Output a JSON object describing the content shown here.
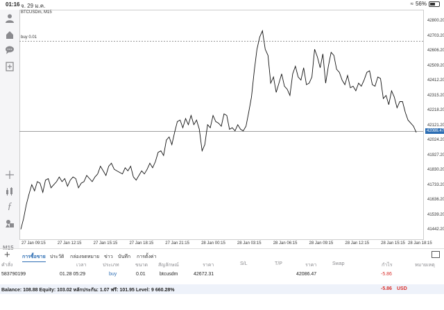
{
  "status": {
    "time": "01:16",
    "date": "จ. 29 ม.ค.",
    "battery": "56%",
    "battery_level": 0.56
  },
  "toolbar": {
    "timeframe": "M15"
  },
  "chart": {
    "symbol": "BTCUSDm, M15",
    "order_line_label": "buy 0.01",
    "current_price": "42086.47",
    "y_ticks": [
      "42800.20",
      "42703.20",
      "42606.20",
      "42509.20",
      "42412.20",
      "42315.20",
      "42218.20",
      "42121.20",
      "42024.20",
      "41927.20",
      "41830.20",
      "41733.20",
      "41636.20",
      "41539.20",
      "41442.20"
    ],
    "x_ticks": [
      "27 Jan 09:15",
      "27 Jan 12:15",
      "27 Jan 15:15",
      "27 Jan 18:15",
      "27 Jan 21:15",
      "28 Jan 00:15",
      "28 Jan 03:15",
      "28 Jan 06:15",
      "28 Jan 09:15",
      "28 Jan 12:15",
      "28 Jan 15:15",
      "28 Jan 18:15"
    ]
  },
  "chart_data": {
    "type": "line",
    "ylim": [
      41390,
      42850
    ],
    "order_price": 42672.31,
    "current_price": 42086.47,
    "values": [
      41450,
      41520,
      41610,
      41680,
      41740,
      41700,
      41760,
      41750,
      41690,
      41770,
      41780,
      41720,
      41740,
      41760,
      41790,
      41760,
      41780,
      41730,
      41770,
      41790,
      41780,
      41720,
      41750,
      41760,
      41800,
      41780,
      41760,
      41790,
      41810,
      41860,
      41830,
      41800,
      41860,
      41880,
      41840,
      41830,
      41820,
      41810,
      41850,
      41830,
      41860,
      41790,
      41770,
      41800,
      41830,
      41810,
      41840,
      41880,
      41850,
      41890,
      41950,
      41960,
      41930,
      42030,
      42050,
      42000,
      42080,
      42150,
      42160,
      42110,
      42170,
      42130,
      42190,
      42130,
      42160,
      42100,
      41960,
      42000,
      42130,
      42110,
      42190,
      42150,
      42140,
      42120,
      42200,
      42190,
      42100,
      42110,
      42090,
      42130,
      42100,
      42090,
      42120,
      42210,
      42310,
      42480,
      42620,
      42700,
      42740,
      42620,
      42580,
      42400,
      42440,
      42340,
      42400,
      42460,
      42380,
      42360,
      42320,
      42460,
      42510,
      42440,
      42420,
      42500,
      42390,
      42400,
      42440,
      42620,
      42570,
      42500,
      42590,
      42400,
      42510,
      42600,
      42580,
      42490,
      42470,
      42420,
      42390,
      42450,
      42370,
      42380,
      42350,
      42400,
      42380,
      42420,
      42470,
      42480,
      42390,
      42380,
      42440,
      42430,
      42300,
      42320,
      42260,
      42350,
      42310,
      42240,
      42280,
      42280,
      42210,
      42160,
      42140,
      42120,
      42080
    ]
  },
  "tabs": {
    "add_label": "+",
    "items": [
      "การซื้อขาย",
      "ประวัติ",
      "กล่องจดหมาย",
      "ข่าว",
      "บันทึก",
      "การตั้งค่า"
    ]
  },
  "table": {
    "headers": [
      "คำสั่ง",
      "เวลา",
      "ประเภท",
      "ขนาด",
      "สัญลักษณ์",
      "ราคา",
      "S/L",
      "T/P",
      "ราคา",
      "Swap",
      "กำไร",
      "หมายเหตุ"
    ],
    "row": {
      "ticket": "583790199",
      "time": "01.28 05:29",
      "type": "buy",
      "size": "0.01",
      "symbol": "btcusdm",
      "price": "42672.31",
      "sl": "",
      "tp": "",
      "current_price": "42086.47",
      "swap": "",
      "profit": "-5.86"
    }
  },
  "balance": {
    "text": "Balance: 108.88 Equity: 103.02 หลักประกัน: 1.07 ฟรี: 101.95 Level: 9 660.28%",
    "profit": "-5.86",
    "currency": "USD"
  },
  "colors": {
    "accent": "#2c6db3",
    "negative": "#d9302c",
    "price_line": "#666666"
  }
}
